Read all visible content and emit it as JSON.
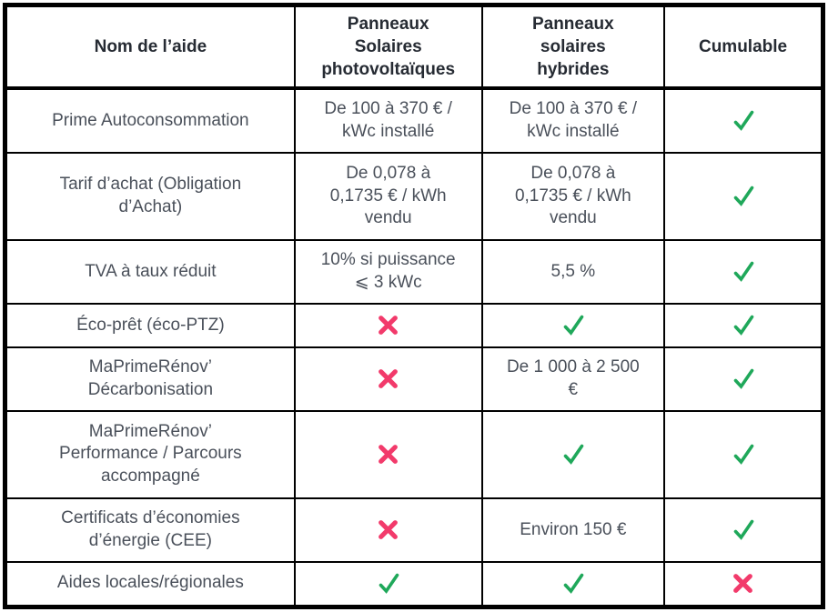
{
  "colors": {
    "check": "#1fa85a",
    "cross": "#f23a6b",
    "border": "#000000",
    "body_text": "#4a505a",
    "header_text": "#262b33"
  },
  "icons": {
    "check": "check-icon",
    "cross": "cross-icon"
  },
  "table": {
    "columns": [
      {
        "label": "Nom de l’aide"
      },
      {
        "label": "Panneaux\nSolaires\nphotovoltaïques"
      },
      {
        "label": "Panneaux\nsolaires\nhybrides"
      },
      {
        "label": "Cumulable"
      }
    ],
    "rows": [
      {
        "name": "Prime Autoconsommation",
        "pv": "De 100 à 370 € /\nkWc installé",
        "hybrid": "De 100 à 370 € /\nkWc installé",
        "cumulable": "check"
      },
      {
        "name": "Tarif d’achat (Obligation\nd’Achat)",
        "pv": "De 0,078 à\n0,1735 € / kWh\nvendu",
        "hybrid": "De 0,078 à\n0,1735 € / kWh\nvendu",
        "cumulable": "check"
      },
      {
        "name": "TVA à taux réduit",
        "pv": "10% si puissance\n⩽ 3 kWc",
        "hybrid": "5,5 %",
        "cumulable": "check"
      },
      {
        "name": "Éco-prêt (éco-PTZ)",
        "pv": "cross",
        "hybrid": "check",
        "cumulable": "check"
      },
      {
        "name": "MaPrimeRénov’\nDécarbonisation",
        "pv": "cross",
        "hybrid": "De 1 000 à 2 500\n€",
        "cumulable": "check"
      },
      {
        "name": "MaPrimeRénov’\nPerformance / Parcours\naccompagné",
        "pv": "cross",
        "hybrid": "check",
        "cumulable": "check"
      },
      {
        "name": "Certificats d’économies\nd’énergie (CEE)",
        "pv": "cross",
        "hybrid": "Environ 150 €",
        "cumulable": "check"
      },
      {
        "name": "Aides locales/régionales",
        "pv": "check",
        "hybrid": "check",
        "cumulable": "cross"
      }
    ]
  }
}
